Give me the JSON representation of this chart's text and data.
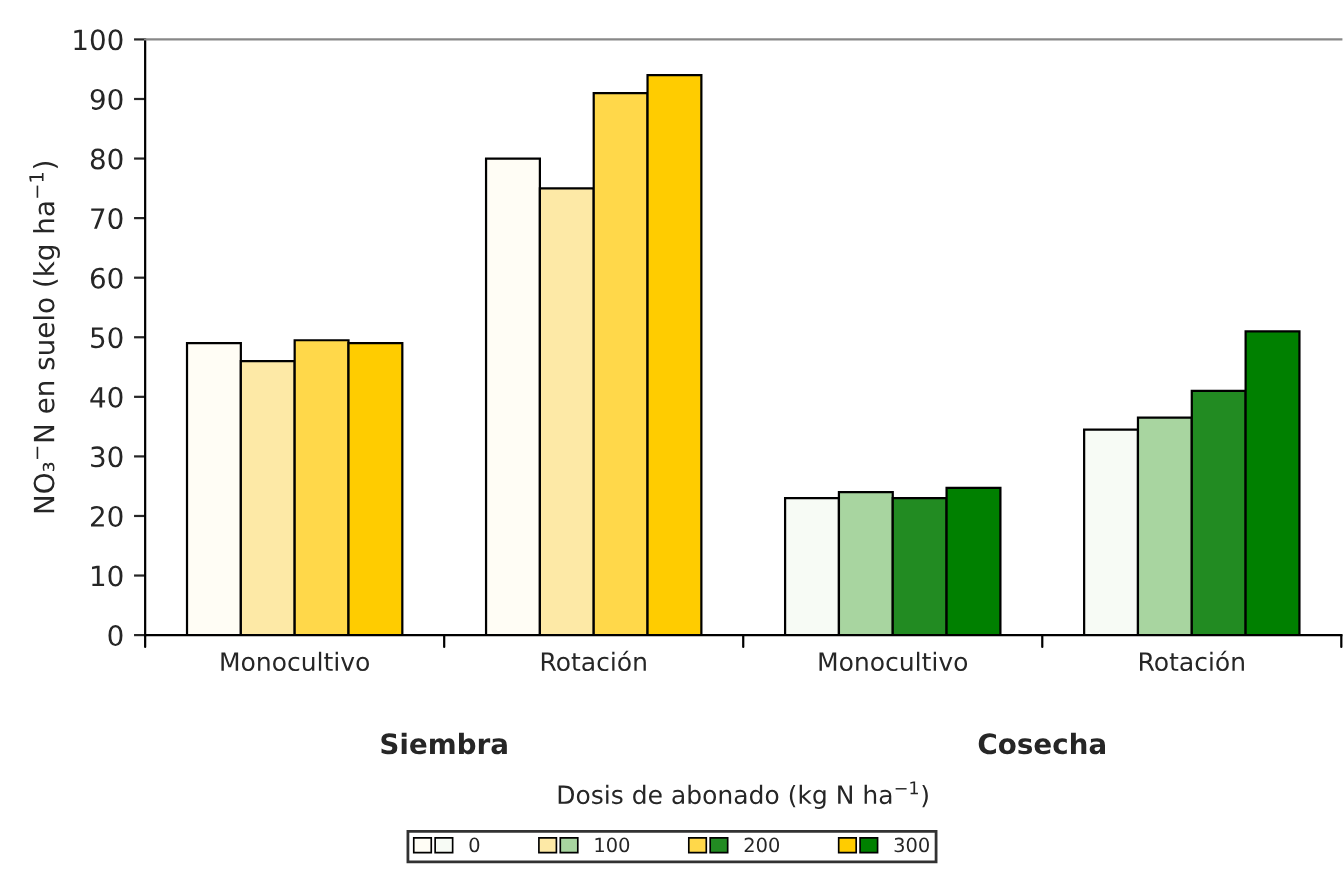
{
  "chart_data": {
    "type": "bar",
    "xlabel": "Dosis de abonado (kg N ha$^{−1}$)",
    "ylabel": "NO₃$^{−}$N en suelo (kg ha$^{−1}$)",
    "categories": [
      "Monocultivo",
      "Rotación",
      "Monocultivo",
      "Rotación"
    ],
    "series": [
      {
        "name": "0",
        "colors": [
          "#fffdf5",
          "#fffdf5",
          "#f7fbf5",
          "#f7fbf5"
        ],
        "values": [
          49,
          80,
          23,
          34.5
        ]
      },
      {
        "name": "100",
        "colors": [
          "#fde9a6",
          "#fde9a6",
          "#a8d5a0",
          "#a8d5a0"
        ],
        "values": [
          46,
          75,
          24,
          36.5
        ]
      },
      {
        "name": "200",
        "colors": [
          "#ffd84a",
          "#ffd84a",
          "#228b22",
          "#228b22"
        ],
        "values": [
          49.5,
          91,
          23,
          41
        ]
      },
      {
        "name": "300",
        "colors": [
          "#ffcc00",
          "#ffcc00",
          "#008000",
          "#008000"
        ],
        "values": [
          49,
          94,
          24.7,
          51
        ]
      }
    ],
    "ylim": [
      0,
      100
    ],
    "yticks": [
      0,
      10,
      20,
      30,
      40,
      50,
      60,
      70,
      80,
      90,
      100
    ],
    "annotations": [
      "Siembra",
      "Cosecha"
    ],
    "grid": false,
    "legend": "bottom"
  }
}
